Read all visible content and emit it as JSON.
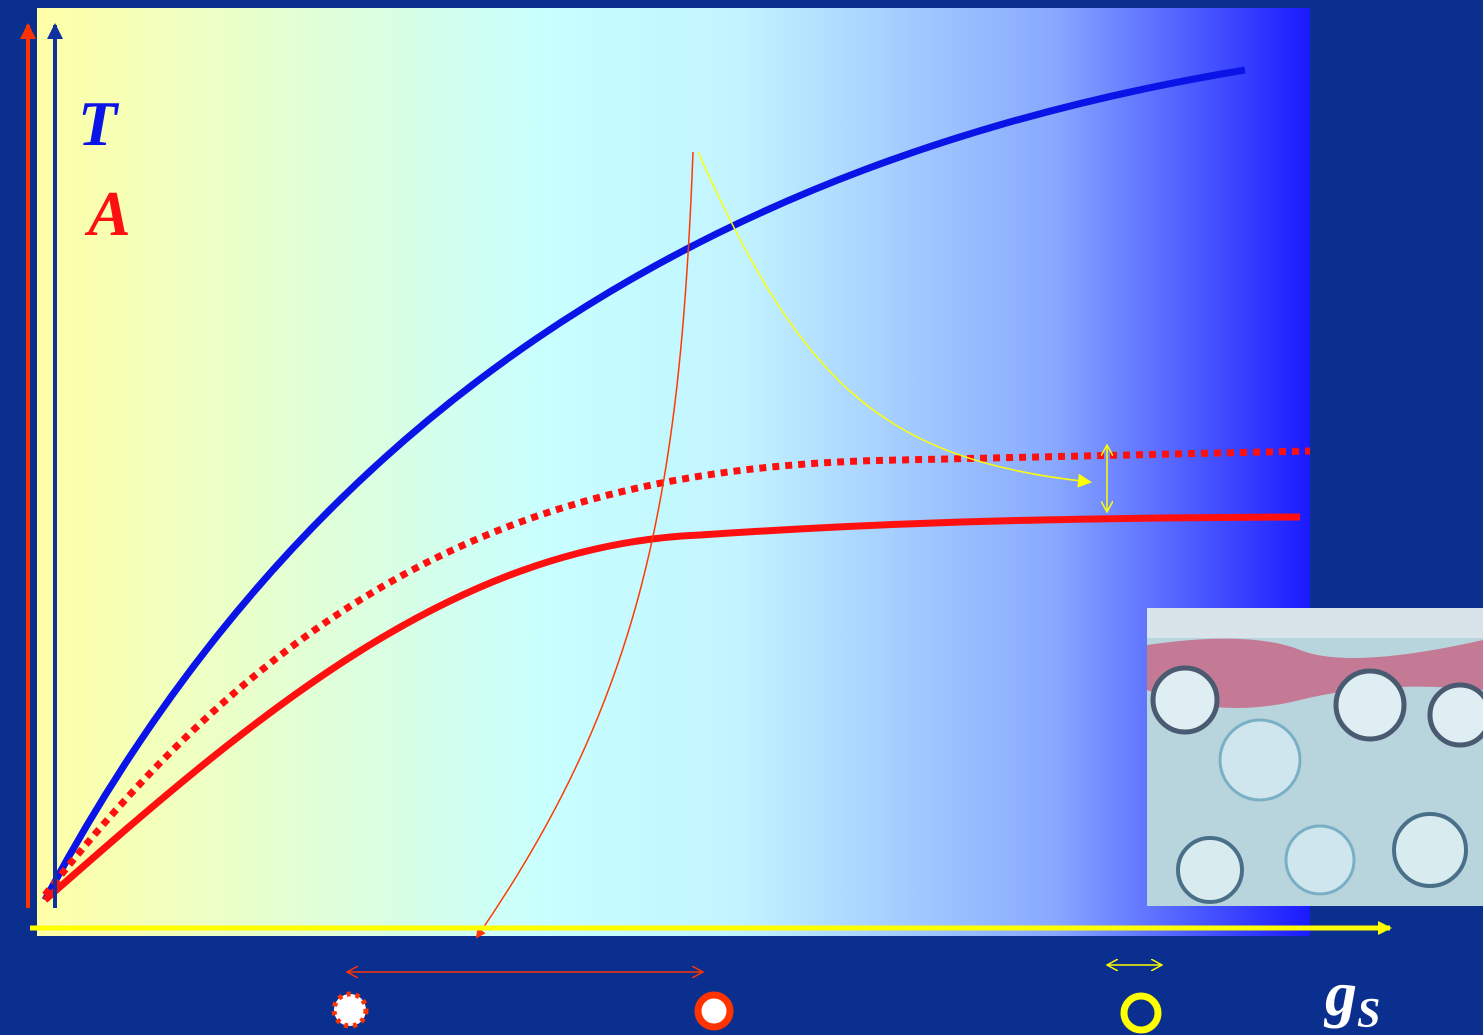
{
  "labels": {
    "transpiration": "T",
    "assimilation": "A",
    "conductance": {
      "main": "g",
      "subscript": "S"
    }
  }
}
